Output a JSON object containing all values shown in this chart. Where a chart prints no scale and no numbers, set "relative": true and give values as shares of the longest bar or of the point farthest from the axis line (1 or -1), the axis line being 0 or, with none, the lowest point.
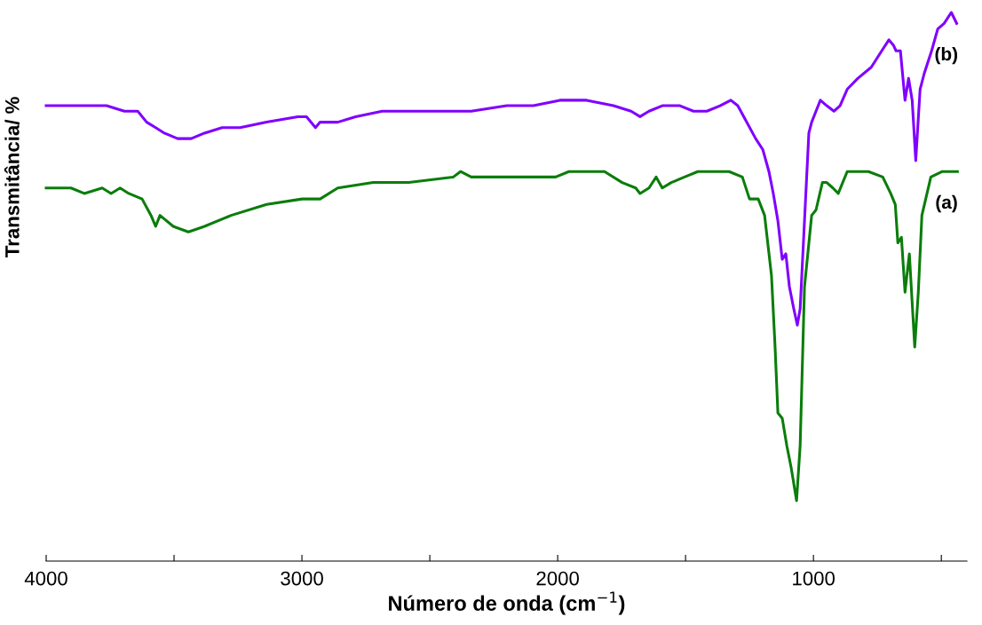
{
  "chart_data": {
    "type": "line",
    "relative": true,
    "xlabel": "Número de onda (cm$^{−1}$)",
    "ylabel": "Transmitância/ %",
    "xlim": [
      4000,
      400
    ],
    "xticks": [
      4000,
      {
        "value": 3500,
        "label": null
      },
      3000,
      {
        "value": 2500,
        "label": null
      },
      2000,
      {
        "value": 1500,
        "label": null
      },
      1000,
      {
        "value": 500,
        "label": null
      }
    ],
    "tick_labels": "x",
    "grid": false,
    "legend": false,
    "marker": "none",
    "line_style": "solid",
    "series": [
      {
        "name": "(b)",
        "color": "#8000ff",
        "x": [
          4000,
          3903,
          3833,
          3764,
          3694,
          3642,
          3607,
          3572,
          3538,
          3486,
          3433,
          3381,
          3312,
          3242,
          3138,
          3016,
          2982,
          2947,
          2929,
          2860,
          2790,
          2686,
          2582,
          2443,
          2391,
          2338,
          2199,
          2095,
          1991,
          1887,
          1782,
          1713,
          1678,
          1643,
          1591,
          1522,
          1469,
          1417,
          1365,
          1323,
          1296,
          1261,
          1226,
          1198,
          1174,
          1157,
          1139,
          1122,
          1108,
          1094,
          1077,
          1063,
          1052,
          1035,
          1018,
          1007,
          990,
          973,
          948,
          920,
          896,
          868,
          826,
          774,
          733,
          705,
          687,
          677,
          660,
          642,
          628,
          614,
          600,
          583,
          566,
          538,
          514,
          489,
          461,
          440
        ],
        "values": [
          0.83,
          0.83,
          0.83,
          0.83,
          0.82,
          0.82,
          0.8,
          0.79,
          0.78,
          0.77,
          0.77,
          0.78,
          0.79,
          0.79,
          0.8,
          0.81,
          0.81,
          0.79,
          0.8,
          0.8,
          0.81,
          0.82,
          0.82,
          0.82,
          0.82,
          0.82,
          0.83,
          0.83,
          0.84,
          0.84,
          0.83,
          0.82,
          0.81,
          0.82,
          0.83,
          0.83,
          0.82,
          0.82,
          0.83,
          0.84,
          0.83,
          0.8,
          0.77,
          0.75,
          0.71,
          0.67,
          0.62,
          0.55,
          0.56,
          0.5,
          0.46,
          0.43,
          0.46,
          0.62,
          0.78,
          0.8,
          0.82,
          0.84,
          0.83,
          0.82,
          0.83,
          0.86,
          0.88,
          0.9,
          0.93,
          0.95,
          0.94,
          0.93,
          0.93,
          0.84,
          0.88,
          0.84,
          0.73,
          0.86,
          0.89,
          0.93,
          0.97,
          0.98,
          1.0,
          0.98
        ]
      },
      {
        "name": "(a)",
        "color": "#0a7d0a",
        "x": [
          4000,
          3903,
          3851,
          3781,
          3746,
          3711,
          3677,
          3625,
          3590,
          3572,
          3555,
          3503,
          3444,
          3381,
          3277,
          3138,
          2999,
          2929,
          2860,
          2721,
          2582,
          2408,
          2380,
          2338,
          2199,
          2060,
          2008,
          1956,
          1817,
          1748,
          1695,
          1678,
          1643,
          1615,
          1591,
          1556,
          1504,
          1452,
          1383,
          1330,
          1278,
          1250,
          1216,
          1191,
          1164,
          1150,
          1139,
          1122,
          1104,
          1087,
          1066,
          1052,
          1035,
          1007,
          990,
          965,
          948,
          924,
          903,
          868,
          785,
          729,
          698,
          680,
          670,
          656,
          642,
          625,
          604,
          590,
          576,
          541,
          496,
          468,
          437
        ],
        "values": [
          0.68,
          0.68,
          0.67,
          0.68,
          0.67,
          0.68,
          0.67,
          0.66,
          0.63,
          0.61,
          0.63,
          0.61,
          0.6,
          0.61,
          0.63,
          0.65,
          0.66,
          0.66,
          0.68,
          0.69,
          0.69,
          0.7,
          0.71,
          0.7,
          0.7,
          0.7,
          0.7,
          0.71,
          0.71,
          0.69,
          0.68,
          0.67,
          0.68,
          0.7,
          0.68,
          0.69,
          0.7,
          0.71,
          0.71,
          0.71,
          0.7,
          0.66,
          0.66,
          0.63,
          0.52,
          0.39,
          0.27,
          0.26,
          0.21,
          0.17,
          0.11,
          0.21,
          0.5,
          0.63,
          0.64,
          0.69,
          0.69,
          0.68,
          0.67,
          0.71,
          0.71,
          0.7,
          0.67,
          0.65,
          0.58,
          0.59,
          0.49,
          0.56,
          0.39,
          0.49,
          0.63,
          0.7,
          0.71,
          0.71,
          0.71
        ]
      }
    ]
  }
}
